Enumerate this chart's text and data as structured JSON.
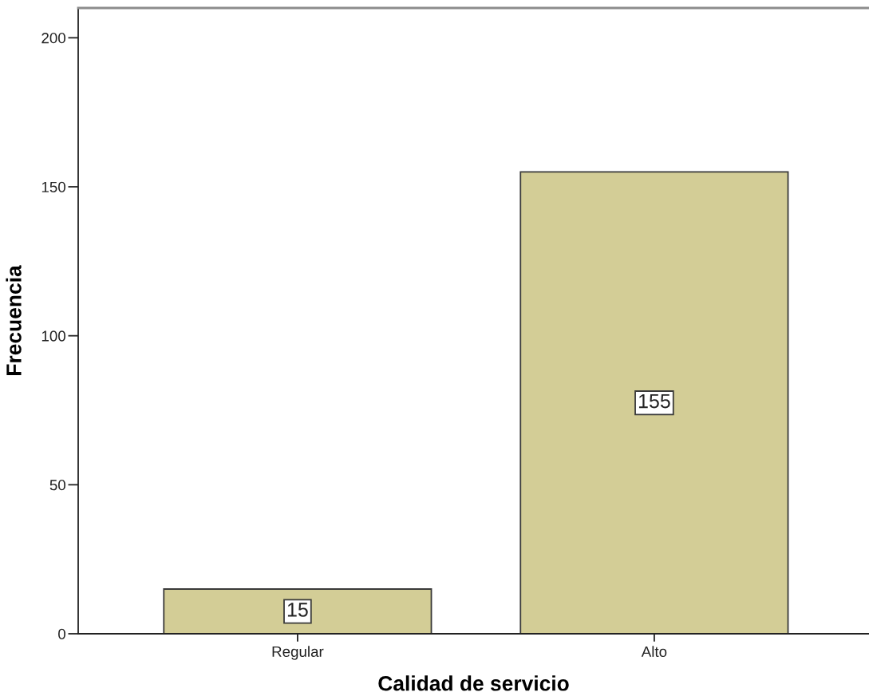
{
  "chart_data": {
    "type": "bar",
    "xlabel": "Calidad de servicio",
    "ylabel": "Frecuencia",
    "categories": [
      "Regular",
      "Alto"
    ],
    "values": [
      15,
      155
    ],
    "color": "#d3cd96",
    "ylim": [
      0,
      210
    ],
    "yticks": [
      0,
      50,
      100,
      150,
      200
    ],
    "data_labels": true
  }
}
